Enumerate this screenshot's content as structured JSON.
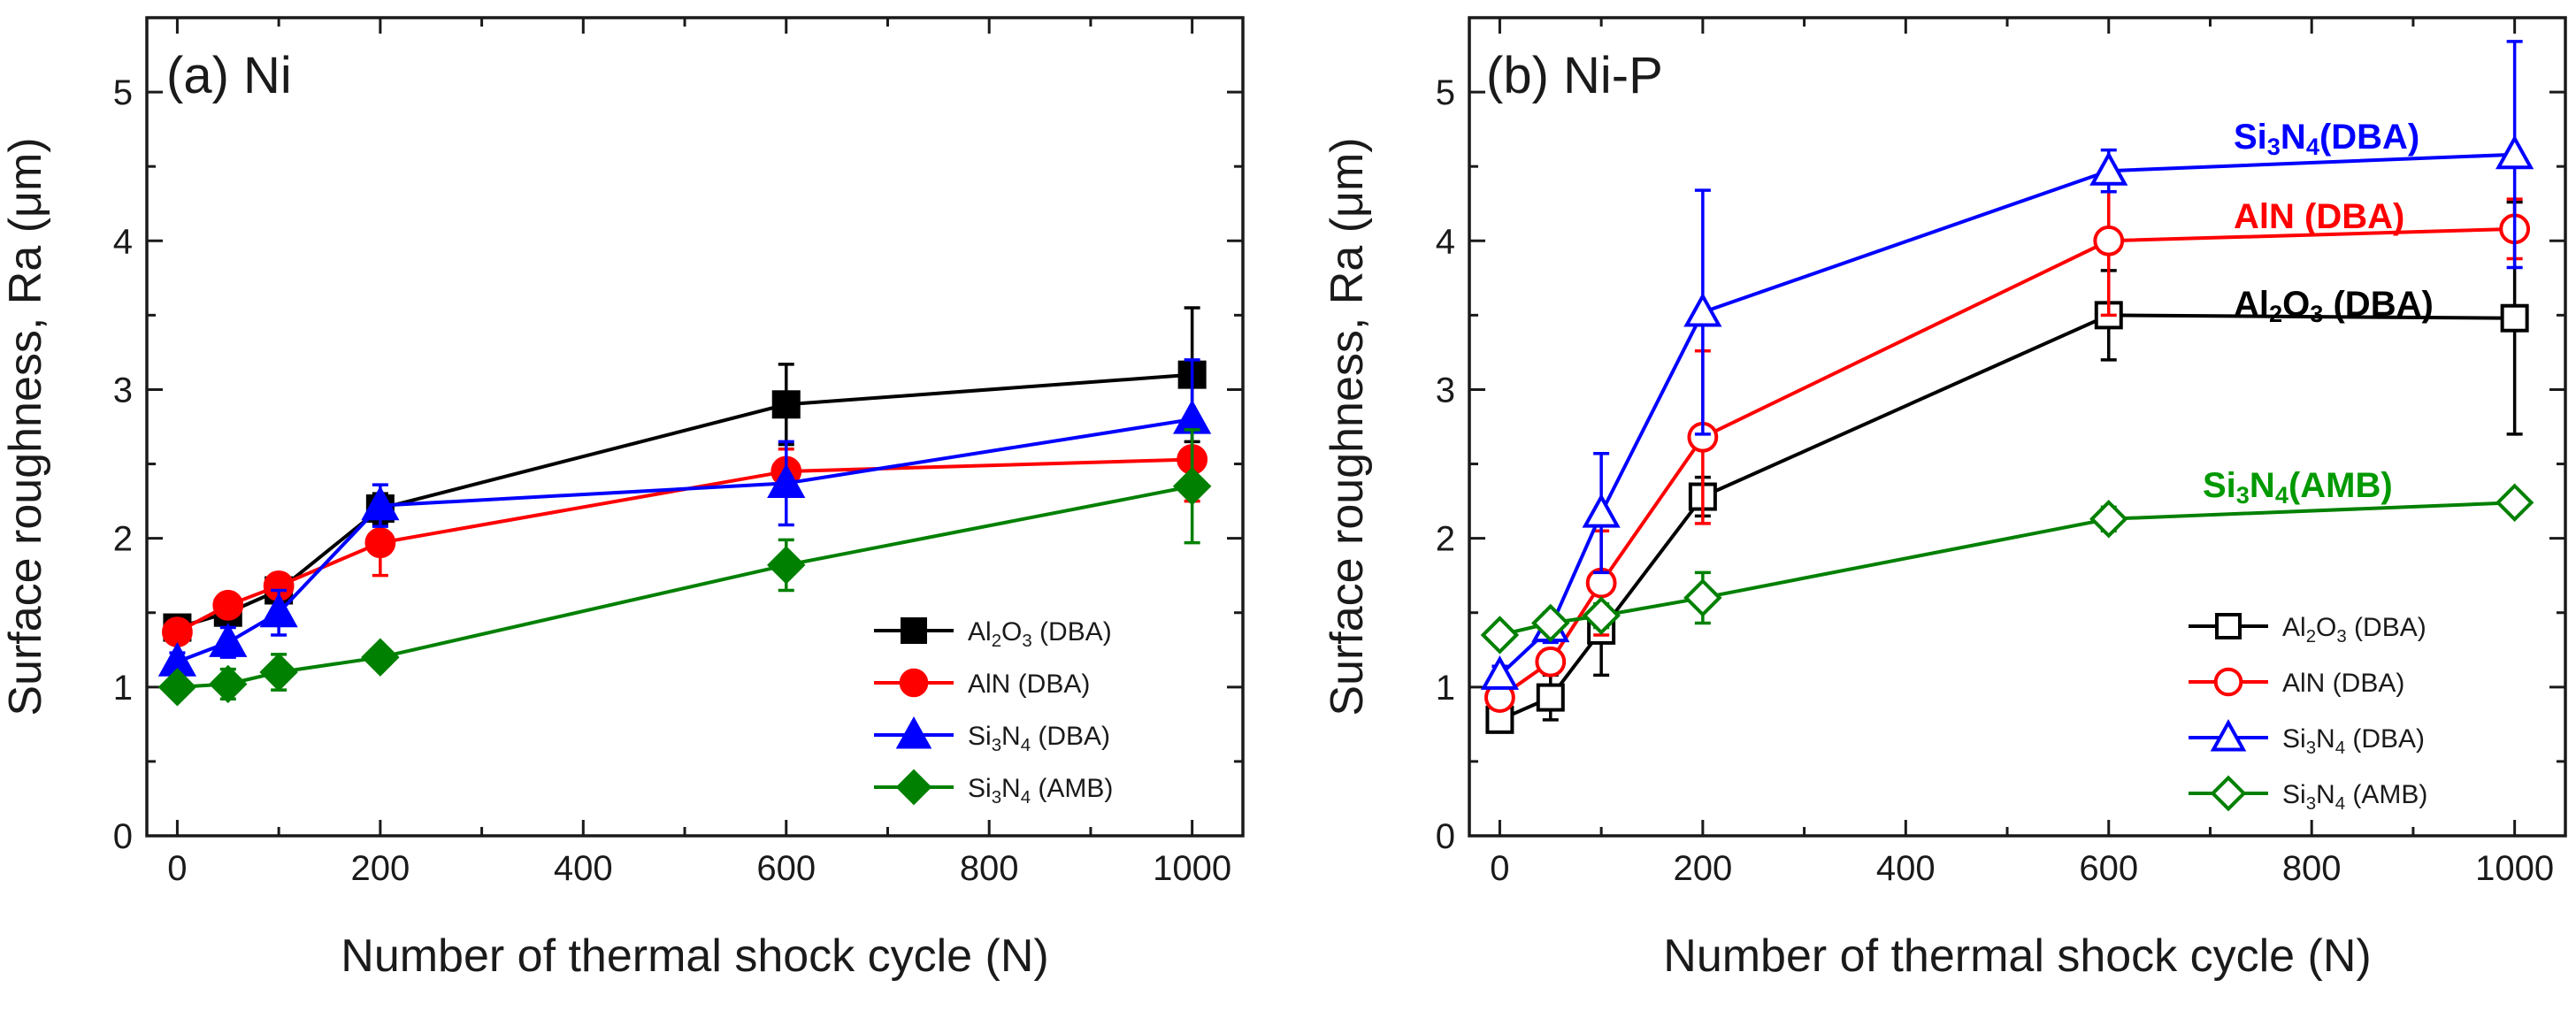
{
  "chart_data": [
    {
      "type": "line",
      "panel_label": "(a) Ni",
      "xlabel": "Number of thermal shock cycle (N)",
      "ylabel": "Surface roughness, Ra (μm)",
      "xlim": [
        -30,
        1050
      ],
      "ylim": [
        0,
        5.5
      ],
      "xticks": [
        "0",
        "200",
        "400",
        "600",
        "800",
        "1000"
      ],
      "yticks": [
        "0",
        "1",
        "2",
        "3",
        "4",
        "5"
      ],
      "legend_position": "lower-right",
      "marker_fill": "filled",
      "series": [
        {
          "name": "Al2O3 (DBA)",
          "label_main": "Al",
          "sub1": "2",
          "mid": "O",
          "sub2": "3",
          "suffix": " (DBA)",
          "color": "#000000",
          "marker": "square",
          "x": [
            0,
            50,
            100,
            200,
            600,
            1000
          ],
          "y": [
            1.4,
            1.5,
            1.65,
            2.2,
            2.9,
            3.1
          ],
          "err": [
            0.05,
            0.08,
            0.08,
            0.1,
            0.27,
            0.45
          ]
        },
        {
          "name": "AlN (DBA)",
          "label_main": "AlN",
          "sub1": "",
          "mid": "",
          "sub2": "",
          "suffix": "    (DBA)",
          "color": "#ff0000",
          "marker": "circle",
          "x": [
            0,
            50,
            100,
            200,
            600,
            1000
          ],
          "y": [
            1.37,
            1.55,
            1.68,
            1.97,
            2.45,
            2.53
          ],
          "err": [
            0.06,
            0.07,
            0.08,
            0.22,
            0.15,
            0.28
          ]
        },
        {
          "name": "Si3N4 (DBA)",
          "label_main": "Si",
          "sub1": "3",
          "mid": "N",
          "sub2": "4",
          "suffix": " (DBA)",
          "color": "#0000ff",
          "marker": "triangle",
          "x": [
            0,
            50,
            100,
            200,
            600,
            1000
          ],
          "y": [
            1.17,
            1.3,
            1.5,
            2.22,
            2.37,
            2.8
          ],
          "err": [
            0.06,
            0.1,
            0.15,
            0.14,
            0.28,
            0.4
          ]
        },
        {
          "name": "Si3N4 (AMB)",
          "label_main": "Si",
          "sub1": "3",
          "mid": "N",
          "sub2": "4",
          "suffix": " (AMB)",
          "color": "#008000",
          "marker": "diamond",
          "x": [
            0,
            50,
            100,
            200,
            600,
            1000
          ],
          "y": [
            1.0,
            1.02,
            1.1,
            1.2,
            1.82,
            2.35
          ],
          "err": [
            0.06,
            0.1,
            0.12,
            0.06,
            0.17,
            0.38
          ]
        }
      ]
    },
    {
      "type": "line",
      "panel_label": "(b) Ni-P",
      "xlabel": "Number of thermal shock cycle (N)",
      "ylabel": "Surface roughness, Ra (μm)",
      "xlim": [
        -30,
        1050
      ],
      "ylim": [
        0,
        5.5
      ],
      "xticks": [
        "0",
        "200",
        "400",
        "600",
        "800",
        "1000"
      ],
      "yticks": [
        "0",
        "1",
        "2",
        "3",
        "4",
        "5"
      ],
      "legend_position": "lower-right",
      "marker_fill": "open",
      "series": [
        {
          "name": "Al2O3 (DBA)",
          "label_main": "Al",
          "sub1": "2",
          "mid": "O",
          "sub2": "3",
          "suffix": " (DBA)",
          "color": "#000000",
          "marker": "square",
          "x": [
            0,
            50,
            100,
            200,
            600,
            1000
          ],
          "y": [
            0.78,
            0.93,
            1.38,
            2.28,
            3.5,
            3.48
          ],
          "err": [
            0.05,
            0.15,
            0.3,
            0.13,
            0.3,
            0.78
          ]
        },
        {
          "name": "AlN (DBA)",
          "label_main": "AlN",
          "sub1": "",
          "mid": "",
          "sub2": "",
          "suffix": "    (DBA)",
          "color": "#ff0000",
          "marker": "circle",
          "x": [
            0,
            50,
            100,
            200,
            600,
            1000
          ],
          "y": [
            0.93,
            1.17,
            1.7,
            2.68,
            4.0,
            4.08
          ],
          "err": [
            0.06,
            0.08,
            0.35,
            0.58,
            0.5,
            0.2
          ]
        },
        {
          "name": "Si3N4 (DBA)",
          "label_main": "Si",
          "sub1": "3",
          "mid": "N",
          "sub2": "4",
          "suffix": " (DBA)",
          "color": "#0000ff",
          "marker": "triangle",
          "x": [
            0,
            50,
            100,
            200,
            600,
            1000
          ],
          "y": [
            1.08,
            1.4,
            2.17,
            3.52,
            4.47,
            4.58
          ],
          "err": [
            0.06,
            0.1,
            0.4,
            0.82,
            0.14,
            0.76
          ]
        },
        {
          "name": "Si3N4 (AMB)",
          "label_main": "Si",
          "sub1": "3",
          "mid": "N",
          "sub2": "4",
          "suffix": " (AMB)",
          "color": "#008000",
          "marker": "diamond",
          "x": [
            0,
            50,
            100,
            200,
            600,
            1000
          ],
          "y": [
            1.35,
            1.43,
            1.48,
            1.6,
            2.13,
            2.24
          ],
          "err": [
            0.06,
            0.06,
            0.08,
            0.17,
            0.08,
            0.04
          ]
        }
      ],
      "annotations": [
        {
          "main": "Si",
          "sub1": "3",
          "mid": "N",
          "sub2": "4",
          "suffix": "(DBA)",
          "color": "#0000ff"
        },
        {
          "main": "AlN",
          "sub1": "",
          "mid": "",
          "sub2": "",
          "suffix": "    (DBA)",
          "color": "#ff0000"
        },
        {
          "main": "Al",
          "sub1": "2",
          "mid": "O",
          "sub2": "3",
          "suffix": " (DBA)",
          "color": "#000000"
        },
        {
          "main": "Si",
          "sub1": "3",
          "mid": "N",
          "sub2": "4",
          "suffix": "(AMB)",
          "color": "#009900"
        }
      ]
    }
  ]
}
